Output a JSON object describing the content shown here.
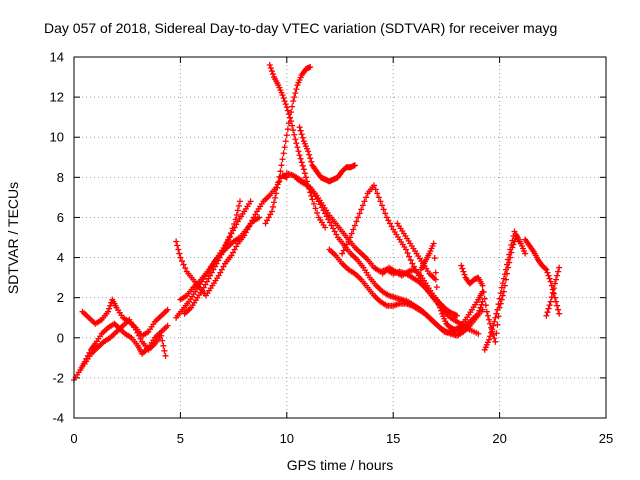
{
  "chart_data": {
    "type": "scatter",
    "title": "Day 057 of 2018, Sidereal Day-to-day VTEC variation (SDTVAR) for receiver mayg",
    "xlabel": "GPS time / hours",
    "ylabel": "SDTVAR / TECUs",
    "xlim": [
      0,
      25
    ],
    "ylim": [
      -4,
      14
    ],
    "xticks": [
      "0",
      "5",
      "10",
      "15",
      "20",
      "25"
    ],
    "yticks": [
      "-4",
      "-2",
      "0",
      "2",
      "4",
      "6",
      "8",
      "10",
      "12",
      "14"
    ],
    "grid": true,
    "marker": "+",
    "color": "#ff0000",
    "series": [
      {
        "name": "trace-1",
        "x": [
          0.0,
          0.3,
          0.5,
          0.8,
          1.0,
          1.3,
          1.6,
          1.9,
          2.1,
          2.4,
          2.7,
          3.0,
          3.2,
          3.5,
          3.8,
          4.1,
          4.4
        ],
        "y": [
          -2.1,
          -1.6,
          -1.2,
          -0.6,
          -0.3,
          0.2,
          0.5,
          0.7,
          0.5,
          0.2,
          0.0,
          -0.4,
          -0.8,
          -0.5,
          0.0,
          0.3,
          0.6
        ]
      },
      {
        "name": "trace-2",
        "x": [
          0.4,
          0.7,
          1.0,
          1.3,
          1.6,
          1.8,
          2.0,
          2.3,
          2.6,
          2.9,
          3.2,
          3.5,
          3.8,
          4.1,
          4.4
        ],
        "y": [
          1.3,
          1.0,
          0.7,
          0.9,
          1.3,
          1.9,
          1.5,
          1.0,
          0.8,
          0.5,
          0.1,
          0.3,
          0.8,
          1.1,
          1.4
        ]
      },
      {
        "name": "trace-3",
        "x": [
          0.5,
          0.8,
          1.1,
          1.4,
          1.7,
          2.0,
          2.3,
          2.6,
          2.9,
          3.2,
          3.5,
          3.8,
          4.1,
          4.3
        ],
        "y": [
          -1.3,
          -0.8,
          -0.5,
          -0.2,
          0.0,
          0.3,
          0.6,
          0.9,
          0.4,
          -0.2,
          -0.6,
          -0.3,
          0.1,
          -0.9
        ]
      },
      {
        "name": "trace-4",
        "x": [
          4.8,
          5.0,
          5.3,
          5.6,
          5.9,
          6.2,
          6.5,
          6.8,
          7.1,
          7.4,
          7.7,
          8.0,
          8.3,
          8.6,
          8.9,
          9.2,
          9.5,
          9.8,
          10.0
        ],
        "y": [
          4.8,
          4.0,
          3.3,
          2.9,
          2.5,
          2.1,
          2.6,
          3.1,
          3.7,
          4.1,
          4.7,
          5.1,
          5.7,
          6.3,
          6.8,
          7.1,
          7.5,
          8.1,
          8.0
        ]
      },
      {
        "name": "trace-5",
        "x": [
          4.8,
          5.1,
          5.4,
          5.7,
          6.0,
          6.3,
          6.6,
          6.9,
          7.2,
          7.5,
          7.8,
          8.1,
          8.4,
          8.7
        ],
        "y": [
          1.0,
          1.4,
          1.8,
          2.3,
          2.8,
          3.3,
          3.8,
          4.2,
          4.5,
          4.8,
          5.0,
          5.4,
          5.8,
          6.0
        ]
      },
      {
        "name": "trace-6",
        "x": [
          5.0,
          5.3,
          5.6,
          5.9,
          6.2,
          6.5,
          6.8,
          7.1,
          7.4,
          7.7,
          8.0,
          8.3
        ],
        "y": [
          1.9,
          2.1,
          2.5,
          2.8,
          3.2,
          3.6,
          4.1,
          4.6,
          5.2,
          5.8,
          6.3,
          6.8
        ]
      },
      {
        "name": "trace-7",
        "x": [
          5.2,
          5.5,
          5.8,
          6.1,
          6.4,
          6.7,
          7.0,
          7.3,
          7.6,
          7.8
        ],
        "y": [
          1.2,
          1.5,
          2.0,
          2.5,
          3.1,
          3.7,
          4.3,
          5.0,
          5.9,
          6.8
        ]
      },
      {
        "name": "trace-8",
        "x": [
          9.0,
          9.3,
          9.5,
          9.7,
          9.9,
          10.1,
          10.3,
          10.5,
          10.7,
          10.9,
          11.1
        ],
        "y": [
          5.7,
          6.3,
          7.2,
          8.3,
          9.5,
          10.7,
          11.8,
          12.6,
          13.1,
          13.4,
          13.5
        ]
      },
      {
        "name": "trace-9",
        "x": [
          9.2,
          9.4,
          9.6,
          9.8,
          10.0,
          10.2,
          10.4,
          10.6,
          10.8,
          11.0,
          11.2,
          11.5,
          11.8
        ],
        "y": [
          13.6,
          13.0,
          12.6,
          12.1,
          11.5,
          10.8,
          9.9,
          9.1,
          8.4,
          7.6,
          6.9,
          6.0,
          5.5
        ]
      },
      {
        "name": "trace-10",
        "x": [
          10.0,
          10.3,
          10.6,
          10.9,
          11.2,
          11.5,
          11.8,
          12.1,
          12.4,
          12.7,
          13.0,
          13.3,
          13.6,
          13.9,
          14.2,
          14.5,
          14.8,
          15.1,
          15.4,
          15.7,
          16.0,
          16.3,
          16.6,
          16.9,
          17.2,
          17.5,
          17.8,
          18.1,
          18.4,
          18.7,
          19.0,
          19.2
        ],
        "y": [
          8.2,
          8.1,
          7.9,
          7.7,
          7.3,
          6.8,
          6.2,
          5.6,
          5.0,
          4.6,
          4.2,
          3.9,
          3.5,
          3.0,
          2.6,
          2.3,
          2.1,
          2.0,
          1.9,
          1.8,
          1.6,
          1.4,
          1.1,
          0.8,
          0.5,
          0.3,
          0.3,
          0.4,
          0.6,
          0.9,
          1.2,
          1.8
        ]
      },
      {
        "name": "trace-11",
        "x": [
          10.5,
          10.8,
          11.1,
          11.4,
          11.7,
          12.0,
          12.3,
          12.6,
          12.9,
          13.2,
          13.5,
          13.8,
          14.1,
          14.4,
          14.7,
          15.0,
          15.3,
          15.6,
          15.9,
          16.2,
          16.5,
          16.8,
          17.1,
          17.4
        ],
        "y": [
          7.9,
          7.7,
          7.5,
          7.1,
          6.6,
          6.1,
          5.7,
          5.3,
          4.9,
          4.5,
          4.2,
          3.9,
          3.5,
          3.3,
          3.4,
          3.2,
          3.3,
          3.2,
          3.0,
          2.8,
          2.5,
          2.1,
          1.8,
          1.5
        ]
      },
      {
        "name": "trace-12",
        "x": [
          10.6,
          10.8,
          11.0,
          11.2,
          11.4,
          11.6,
          11.8,
          12.0,
          12.2,
          12.4,
          12.6,
          12.8,
          13.0,
          13.2
        ],
        "y": [
          10.5,
          9.8,
          9.3,
          8.6,
          8.3,
          8.0,
          7.9,
          7.8,
          7.9,
          8.0,
          8.3,
          8.5,
          8.5,
          8.6
        ]
      },
      {
        "name": "trace-13",
        "x": [
          12.0,
          12.3,
          12.6,
          12.9,
          13.2,
          13.5,
          13.8,
          14.1,
          14.4,
          14.7,
          15.0,
          15.3,
          15.6,
          15.9,
          16.2,
          16.5,
          16.8,
          17.1,
          17.4,
          17.7,
          18.0,
          18.3,
          18.6,
          18.9,
          19.2
        ],
        "y": [
          4.4,
          4.1,
          3.7,
          3.4,
          3.2,
          2.9,
          2.5,
          2.1,
          1.8,
          1.6,
          1.6,
          1.7,
          1.7,
          1.6,
          1.4,
          1.2,
          0.9,
          0.6,
          0.3,
          0.2,
          0.1,
          0.3,
          0.6,
          1.0,
          1.4
        ]
      },
      {
        "name": "trace-14",
        "x": [
          12.6,
          12.9,
          13.2,
          13.5,
          13.8,
          14.1,
          14.4,
          14.7,
          15.0,
          15.3,
          15.6,
          15.9,
          16.2,
          16.5,
          16.8,
          17.1,
          17.4,
          17.7,
          18.0,
          18.3,
          18.6,
          19.0
        ],
        "y": [
          4.2,
          4.8,
          5.6,
          6.4,
          7.2,
          7.6,
          6.8,
          6.0,
          5.4,
          4.9,
          4.4,
          3.7,
          3.1,
          2.6,
          2.1,
          1.7,
          1.3,
          1.0,
          0.8,
          0.6,
          0.4,
          0.2
        ]
      },
      {
        "name": "trace-15",
        "x": [
          14.5,
          14.8,
          15.1,
          15.4,
          15.7,
          16.0,
          16.3,
          16.6,
          16.9,
          17.2,
          17.5,
          17.8,
          18.0
        ],
        "y": [
          3.2,
          3.5,
          3.3,
          3.1,
          3.3,
          3.4,
          3.1,
          2.6,
          2.1,
          1.7,
          1.4,
          1.2,
          1.1
        ]
      },
      {
        "name": "trace-16",
        "x": [
          15.2,
          15.5,
          15.8,
          16.1,
          16.4,
          16.7,
          17.0
        ],
        "y": [
          5.7,
          5.2,
          4.7,
          4.2,
          3.7,
          3.2,
          2.9
        ]
      },
      {
        "name": "trace-17",
        "x": [
          16.3,
          16.5,
          16.7,
          16.9,
          17.1,
          17.3,
          17.5,
          17.7,
          17.9,
          18.1,
          18.4,
          18.7,
          19.0,
          19.2
        ],
        "y": [
          3.4,
          3.8,
          4.2,
          4.7,
          1.8,
          1.2,
          0.7,
          0.5,
          0.4,
          0.5,
          0.9,
          1.4,
          1.9,
          2.3
        ]
      },
      {
        "name": "trace-18",
        "x": [
          18.2,
          18.4,
          18.6,
          18.8,
          19.0,
          19.2,
          19.4,
          19.6,
          19.8,
          20.0,
          20.2,
          20.4,
          20.6,
          20.8,
          21.0,
          21.2
        ],
        "y": [
          3.6,
          3.0,
          2.7,
          2.9,
          3.0,
          2.6,
          1.3,
          0.5,
          -0.2,
          1.5,
          2.3,
          3.5,
          4.5,
          5.1,
          4.7,
          4.2
        ]
      },
      {
        "name": "trace-19",
        "x": [
          19.3,
          19.5,
          19.7,
          19.9,
          20.1,
          20.3,
          20.5,
          20.7,
          20.9
        ],
        "y": [
          -0.6,
          -0.1,
          0.6,
          1.4,
          2.5,
          3.4,
          4.4,
          5.3,
          4.8
        ]
      },
      {
        "name": "trace-20",
        "x": [
          21.2,
          21.4,
          21.6,
          21.8,
          22.0,
          22.2,
          22.4,
          22.6,
          22.8
        ],
        "y": [
          4.9,
          4.6,
          4.3,
          3.9,
          3.6,
          3.4,
          2.8,
          2.0,
          1.2
        ]
      },
      {
        "name": "trace-21",
        "x": [
          22.2,
          22.4,
          22.6,
          22.8
        ],
        "y": [
          1.1,
          1.8,
          2.7,
          3.5
        ]
      }
    ]
  }
}
